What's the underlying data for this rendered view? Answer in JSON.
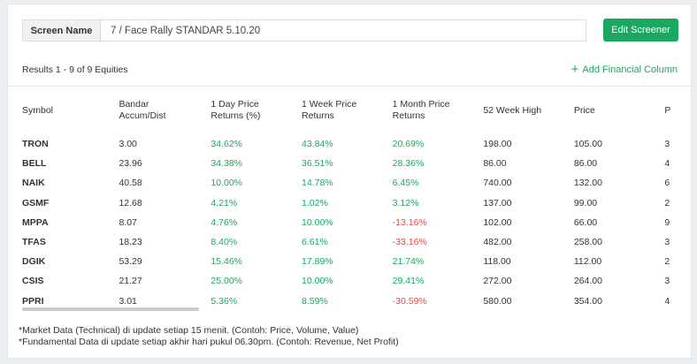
{
  "screen_name": {
    "label": "Screen Name",
    "value": "7 / Face Rally STANDAR 5.10.20"
  },
  "edit_button": "Edit Screener",
  "results_text": "Results 1 - 9 of 9 Equities",
  "add_column": "Add Financial Column",
  "columns": {
    "symbol": "Symbol",
    "bandar_1": "Bandar",
    "bandar_2": "Accum/Dist",
    "day_1": "1 Day Price",
    "day_2": "Returns (%)",
    "week_1": "1 Week Price",
    "week_2": "Returns",
    "month_1": "1 Month Price",
    "month_2": "Returns",
    "high52": "52 Week High",
    "price": "Price",
    "extra": "P"
  },
  "rows": [
    {
      "symbol": "TRON",
      "bandar": "3.00",
      "day": "34.62%",
      "week": "43.84%",
      "month": "20.69%",
      "month_sign": "pos",
      "high52": "198.00",
      "price": "105.00",
      "extra": "3"
    },
    {
      "symbol": "BELL",
      "bandar": "23.96",
      "day": "34.38%",
      "week": "36.51%",
      "month": "28.36%",
      "month_sign": "pos",
      "high52": "86.00",
      "price": "86.00",
      "extra": "4"
    },
    {
      "symbol": "NAIK",
      "bandar": "40.58",
      "day": "10.00%",
      "week": "14.78%",
      "month": "6.45%",
      "month_sign": "pos",
      "high52": "740.00",
      "price": "132.00",
      "extra": "6"
    },
    {
      "symbol": "GSMF",
      "bandar": "12.68",
      "day": "4.21%",
      "week": "1.02%",
      "month": "3.12%",
      "month_sign": "pos",
      "high52": "137.00",
      "price": "99.00",
      "extra": "2"
    },
    {
      "symbol": "MPPA",
      "bandar": "8.07",
      "day": "4.76%",
      "week": "10.00%",
      "month": "-13.16%",
      "month_sign": "neg",
      "high52": "102.00",
      "price": "66.00",
      "extra": "9"
    },
    {
      "symbol": "TFAS",
      "bandar": "18.23",
      "day": "8.40%",
      "week": "6.61%",
      "month": "-33.16%",
      "month_sign": "neg",
      "high52": "482.00",
      "price": "258.00",
      "extra": "3"
    },
    {
      "symbol": "DGIK",
      "bandar": "53.29",
      "day": "15.46%",
      "week": "17.89%",
      "month": "21.74%",
      "month_sign": "pos",
      "high52": "118.00",
      "price": "112.00",
      "extra": "2"
    },
    {
      "symbol": "CSIS",
      "bandar": "21.27",
      "day": "25.00%",
      "week": "10.00%",
      "month": "29.41%",
      "month_sign": "pos",
      "high52": "272.00",
      "price": "264.00",
      "extra": "3"
    },
    {
      "symbol": "PPRI",
      "bandar": "3.01",
      "day": "5.36%",
      "week": "8.59%",
      "month": "-30.59%",
      "month_sign": "neg",
      "high52": "580.00",
      "price": "354.00",
      "extra": "4"
    }
  ],
  "footnotes": [
    "*Market Data (Technical) di update setiap 15 menit. (Contoh: Price, Volume, Value)",
    "*Fundamental Data di update setiap akhir hari pukul 06.30pm. (Contoh: Revenue, Net Profit)"
  ],
  "colors": {
    "accent": "#1aa760",
    "negative": "#e34b4b"
  }
}
